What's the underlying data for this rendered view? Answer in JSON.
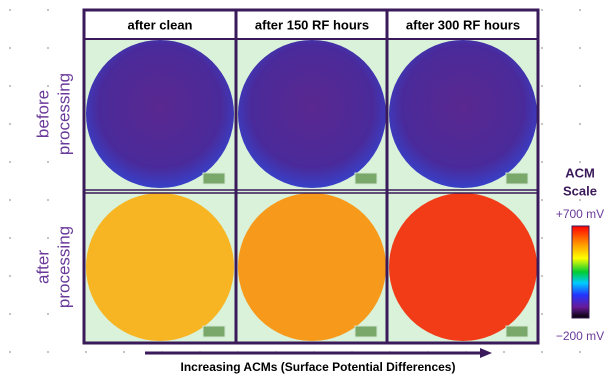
{
  "columns": [
    "after clean",
    "after 150 RF hours",
    "after 300 RF hours"
  ],
  "rows": [
    [
      "before",
      "processing"
    ],
    [
      "after",
      "processing"
    ]
  ],
  "axis_label": "Increasing ACMs (Surface Potential Differences)",
  "scale": {
    "title": [
      "ACM",
      "Scale"
    ],
    "top_label": "+700 mV",
    "bottom_label": "−200 mV"
  }
}
